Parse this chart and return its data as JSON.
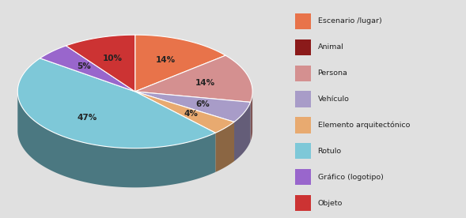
{
  "slices": [
    {
      "label": "Escenario /lugar)",
      "pct": 14,
      "color": "#E8734A"
    },
    {
      "label": "Persona",
      "pct": 14,
      "color": "#D49090"
    },
    {
      "label": "Vehículo",
      "pct": 6,
      "color": "#A89CC8"
    },
    {
      "label": "Elemento arquitectónico",
      "pct": 4,
      "color": "#E8AA70"
    },
    {
      "label": "Rotulo",
      "pct": 47,
      "color": "#7EC8D8"
    },
    {
      "label": "Gráfico (logotipo)",
      "pct": 5,
      "color": "#9966CC"
    },
    {
      "label": "Objeto",
      "pct": 10,
      "color": "#CC3333"
    }
  ],
  "legend_labels": [
    "Escenario /lugar)",
    "Animal",
    "Persona",
    "Vehículo",
    "Elemento arquitectónico",
    "Rotulo",
    "Gráfico (logotipo)",
    "Objeto"
  ],
  "legend_colors": [
    "#E8734A",
    "#8B1A1A",
    "#D49090",
    "#A89CC8",
    "#E8AA70",
    "#7EC8D8",
    "#9966CC",
    "#CC3333"
  ],
  "background_color": "#e0e0e0",
  "chart_background": "#ffffff"
}
